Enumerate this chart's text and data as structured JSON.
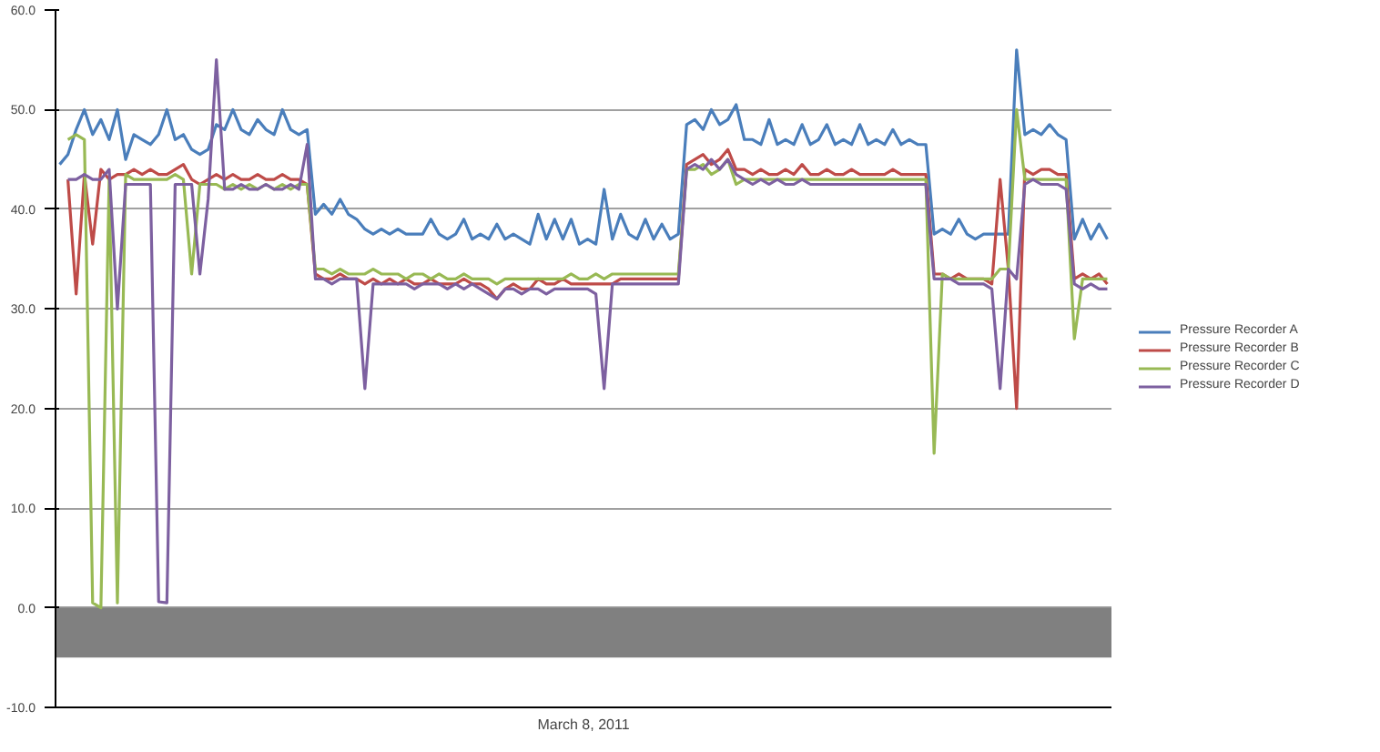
{
  "chart_data": {
    "type": "line",
    "xlabel": "March 8, 2011",
    "categories": [
      null,
      null,
      null,
      null,
      null,
      null,
      null,
      null,
      null,
      null,
      null,
      null,
      null,
      null,
      null,
      null,
      null,
      null,
      null,
      null,
      null,
      null,
      null,
      null,
      null,
      null,
      null,
      null,
      null,
      null,
      null,
      null,
      null,
      null,
      null,
      null,
      null,
      null,
      null,
      null,
      null,
      null,
      null,
      null,
      null,
      null,
      null,
      null,
      null,
      null,
      null,
      null,
      null,
      null,
      null,
      null,
      null,
      null,
      null,
      null,
      null,
      null,
      null,
      null,
      null,
      null,
      null,
      null,
      null,
      null,
      null,
      null,
      null,
      null,
      null,
      null,
      null,
      null,
      null,
      null,
      null,
      null,
      null,
      null,
      null,
      null,
      null,
      null,
      null,
      null,
      null,
      null,
      null,
      null,
      null,
      null,
      null,
      null,
      null,
      null,
      null,
      null,
      null,
      null,
      null,
      null,
      null,
      null,
      null,
      null,
      null,
      null,
      null,
      null,
      null,
      null,
      null,
      null,
      null,
      null,
      null,
      null,
      null,
      null,
      null,
      null,
      null,
      null
    ],
    "series": [
      {
        "name": "Pressure Recorder A",
        "color": "#4a7ebb",
        "values": [
          44.5,
          45.5,
          48,
          50,
          47.5,
          49,
          47,
          50,
          45,
          47.5,
          47,
          46.5,
          47.5,
          50,
          47,
          47.5,
          46,
          45.5,
          46,
          48.5,
          48,
          50,
          48,
          47.5,
          49,
          48,
          47.5,
          50,
          48,
          47.5,
          48,
          39.5,
          40.5,
          39.5,
          41,
          39.5,
          39,
          38,
          37.5,
          38,
          37.5,
          38,
          37.5,
          37.5,
          37.5,
          39,
          37.5,
          37,
          37.5,
          39,
          37,
          37.5,
          37,
          38.5,
          37,
          37.5,
          37,
          36.5,
          39.5,
          37,
          39,
          37,
          39,
          36.5,
          37,
          36.5,
          42,
          37,
          39.5,
          37.5,
          37,
          39,
          37,
          38.5,
          37,
          37.5,
          48.5,
          49,
          48,
          50,
          48.5,
          49,
          50.5,
          47,
          47,
          46.5,
          49,
          46.5,
          47,
          46.5,
          48.5,
          46.5,
          47,
          48.5,
          46.5,
          47,
          46.5,
          48.5,
          46.5,
          47,
          46.5,
          48,
          46.5,
          47,
          46.5,
          46.5,
          37.5,
          38,
          37.5,
          39,
          37.5,
          37,
          37.5,
          37.5,
          37.5,
          37.5,
          56,
          47.5,
          48,
          47.5,
          48.5,
          47.5,
          47,
          37,
          39,
          37,
          38.5,
          37
        ]
      },
      {
        "name": "Pressure Recorder B",
        "color": "#be4b48",
        "values": [
          null,
          43,
          31.5,
          43.5,
          36.5,
          44,
          43,
          43.5,
          43.5,
          44,
          43.5,
          44,
          43.5,
          43.5,
          44,
          44.5,
          43,
          42.5,
          43,
          43.5,
          43,
          43.5,
          43,
          43,
          43.5,
          43,
          43,
          43.5,
          43,
          43,
          42.5,
          33.5,
          33,
          33,
          33.5,
          33,
          33,
          32.5,
          33,
          32.5,
          33,
          32.5,
          33,
          32.5,
          32.5,
          33,
          32.5,
          32.5,
          32.5,
          33,
          32.5,
          32.5,
          32,
          31,
          32,
          32.5,
          32,
          32,
          33,
          32.5,
          32.5,
          33,
          32.5,
          32.5,
          32.5,
          32.5,
          32.5,
          32.5,
          33,
          33,
          33,
          33,
          33,
          33,
          33,
          33,
          44.5,
          45,
          45.5,
          44.5,
          45,
          46,
          44,
          44,
          43.5,
          44,
          43.5,
          43.5,
          44,
          43.5,
          44.5,
          43.5,
          43.5,
          44,
          43.5,
          43.5,
          44,
          43.5,
          43.5,
          43.5,
          43.5,
          44,
          43.5,
          43.5,
          43.5,
          43.5,
          33.5,
          33.5,
          33,
          33.5,
          33,
          33,
          33,
          32.5,
          43,
          34,
          20,
          44,
          43.5,
          44,
          44,
          43.5,
          43.5,
          33,
          33.5,
          33,
          33.5,
          32.5
        ]
      },
      {
        "name": "Pressure Recorder C",
        "color": "#98b954",
        "values": [
          null,
          47,
          47.5,
          47,
          0.5,
          0,
          43,
          0.5,
          43.5,
          43,
          43,
          43,
          43,
          43,
          43.5,
          43,
          33.5,
          42.5,
          42.5,
          42.5,
          42,
          42.5,
          42,
          42.5,
          42,
          42.5,
          42,
          42.5,
          42,
          42.5,
          42.5,
          34,
          34,
          33.5,
          34,
          33.5,
          33.5,
          33.5,
          34,
          33.5,
          33.5,
          33.5,
          33,
          33.5,
          33.5,
          33,
          33.5,
          33,
          33,
          33.5,
          33,
          33,
          33,
          32.5,
          33,
          33,
          33,
          33,
          33,
          33,
          33,
          33,
          33.5,
          33,
          33,
          33.5,
          33,
          33.5,
          33.5,
          33.5,
          33.5,
          33.5,
          33.5,
          33.5,
          33.5,
          33.5,
          44,
          44,
          44.5,
          43.5,
          44,
          45,
          42.5,
          43,
          43,
          43,
          43,
          43,
          43,
          43,
          43,
          43,
          43,
          43,
          43,
          43,
          43,
          43,
          43,
          43,
          43,
          43,
          43,
          43,
          43,
          43,
          15.5,
          33.5,
          33,
          33,
          33,
          33,
          33,
          33,
          34,
          34,
          50,
          43,
          43,
          43,
          43,
          43,
          43,
          27,
          33,
          33,
          33,
          33
        ]
      },
      {
        "name": "Pressure Recorder D",
        "color": "#7d60a0",
        "values": [
          null,
          43,
          43,
          43.5,
          43,
          43,
          44,
          30,
          42.5,
          42.5,
          42.5,
          42.5,
          0.6,
          0.5,
          42.5,
          42.5,
          42.5,
          33.5,
          41,
          55,
          42,
          42,
          42.5,
          42,
          42,
          42.5,
          42,
          42,
          42.5,
          42,
          46.5,
          33,
          33,
          32.5,
          33,
          33,
          33,
          22,
          32.5,
          32.5,
          32.5,
          32.5,
          32.5,
          32,
          32.5,
          32.5,
          32.5,
          32,
          32.5,
          32,
          32.5,
          32,
          31.5,
          31,
          32,
          32,
          31.5,
          32,
          32,
          31.5,
          32,
          32,
          32,
          32,
          32,
          31.5,
          22,
          32.5,
          32.5,
          32.5,
          32.5,
          32.5,
          32.5,
          32.5,
          32.5,
          32.5,
          44,
          44.5,
          44,
          45,
          44,
          45,
          43.5,
          43,
          42.5,
          43,
          42.5,
          43,
          42.5,
          42.5,
          43,
          42.5,
          42.5,
          42.5,
          42.5,
          42.5,
          42.5,
          42.5,
          42.5,
          42.5,
          42.5,
          42.5,
          42.5,
          42.5,
          42.5,
          42.5,
          33,
          33,
          33,
          32.5,
          32.5,
          32.5,
          32.5,
          32,
          22,
          34,
          33,
          42.5,
          43,
          42.5,
          42.5,
          42.5,
          42,
          32.5,
          32,
          32.5,
          32,
          32
        ]
      }
    ],
    "ylim": [
      -10,
      60
    ],
    "yticks": [
      {
        "value": -10,
        "label": "-10.0"
      },
      {
        "value": 0,
        "label": "0.0"
      },
      {
        "value": 10,
        "label": "10.0"
      },
      {
        "value": 20,
        "label": "20.0"
      },
      {
        "value": 30,
        "label": "30.0"
      },
      {
        "value": 40,
        "label": "40.0"
      },
      {
        "value": 50,
        "label": "50.0"
      },
      {
        "value": 60,
        "label": "60.0"
      }
    ],
    "bands": [
      {
        "axis": "y",
        "from": -5,
        "to": 0,
        "color": "#808080"
      }
    ],
    "grid": "y",
    "legend": "right",
    "line_style": "solid"
  }
}
